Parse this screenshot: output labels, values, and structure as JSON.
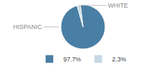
{
  "chart_data": {
    "type": "pie",
    "categories": [
      "HISPANIC",
      "WHITE"
    ],
    "values": [
      97.7,
      2.3
    ],
    "value_labels": [
      "97.7%",
      "2.3%"
    ],
    "colors": [
      "#4a7fa5",
      "#c5d8e4"
    ],
    "legend": "bottom"
  }
}
